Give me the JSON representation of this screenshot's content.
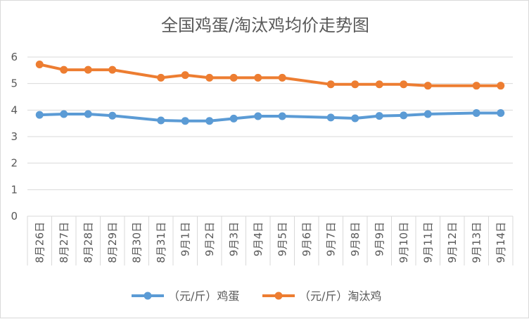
{
  "chart_data": {
    "type": "line",
    "title": "全国鸡蛋/淘汰鸡均价走势图",
    "categories": [
      "8月26日",
      "8月27日",
      "8月28日",
      "8月29日",
      "8月30日",
      "8月31日",
      "9月1日",
      "9月2日",
      "9月3日",
      "9月4日",
      "9月5日",
      "9月6日",
      "9月7日",
      "9月8日",
      "9月9日",
      "9月10日",
      "9月11日",
      "9月12日",
      "9月13日",
      "9月14日"
    ],
    "ylim": [
      0,
      6
    ],
    "yticks": [
      "0",
      "1",
      "2",
      "3",
      "4",
      "5",
      "6"
    ],
    "grid": true,
    "legend_position": "bottom",
    "series": [
      {
        "name": "（元/斤）鸡蛋",
        "color": "#5b9bd5",
        "values": [
          3.82,
          3.85,
          3.85,
          3.79,
          null,
          3.61,
          3.59,
          3.59,
          3.68,
          3.77,
          3.77,
          null,
          3.72,
          3.69,
          3.78,
          3.8,
          3.85,
          null,
          3.89,
          3.89
        ]
      },
      {
        "name": "（元/斤）淘汰鸡",
        "color": "#ed7d31",
        "values": [
          5.72,
          5.52,
          5.52,
          5.52,
          null,
          5.22,
          5.32,
          5.22,
          5.22,
          5.22,
          5.22,
          null,
          4.97,
          4.97,
          4.97,
          4.97,
          4.92,
          null,
          4.92,
          4.92
        ]
      }
    ]
  }
}
